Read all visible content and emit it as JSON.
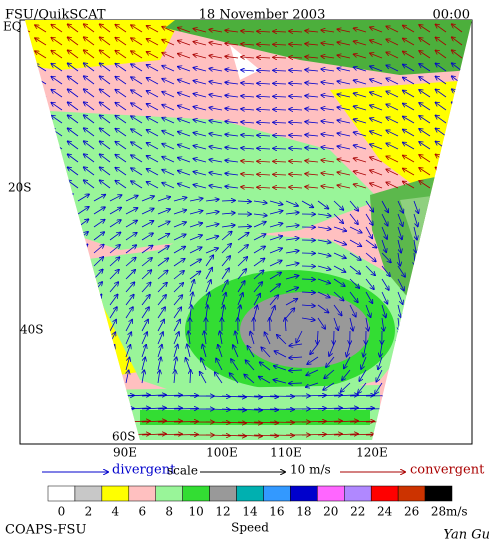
{
  "header": {
    "source": "FSU/QuikSCAT",
    "date": "18 November 2003",
    "time": "00:00"
  },
  "map": {
    "lat_labels": [
      "EQ",
      "20S",
      "40S",
      "60S"
    ],
    "lon_labels": [
      "90E",
      "100E",
      "110E",
      "120E"
    ]
  },
  "scale": {
    "left": "divergent",
    "middle": "scale",
    "reference": "10 m/s",
    "right": "convergent"
  },
  "colorbar": {
    "ticks": [
      0,
      2,
      4,
      6,
      8,
      10,
      12,
      14,
      16,
      18,
      20,
      22,
      24,
      26,
      28
    ],
    "colors": [
      "#ffffff",
      "#c8c8c8",
      "#ffff00",
      "#ffc0c0",
      "#99f599",
      "#33dd33",
      "#999999",
      "#00b0b0",
      "#3399ff",
      "#0000cc",
      "#ff66ff",
      "#b088ff",
      "#ff0000",
      "#cc3300",
      "#000000"
    ],
    "unit": "m/s",
    "label": "Speed"
  },
  "footer": {
    "left": "COAPS-FSU",
    "right": "Yan Gu"
  }
}
